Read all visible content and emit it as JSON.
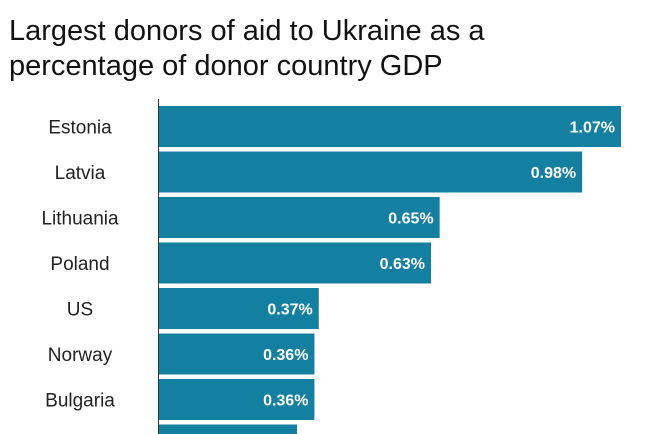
{
  "title": "Largest donors of aid to Ukraine as a percentage of donor country GDP",
  "colors": {
    "bar": "#1380A1",
    "axis": "#333333"
  },
  "chart_data": {
    "type": "bar",
    "orientation": "horizontal",
    "title": "Largest donors of aid to Ukraine as a percentage of donor country GDP",
    "categories": [
      "Estonia",
      "Latvia",
      "Lithuania",
      "Poland",
      "US",
      "Norway",
      "Bulgaria"
    ],
    "values": [
      1.07,
      0.98,
      0.65,
      0.63,
      0.37,
      0.36,
      0.36
    ],
    "value_labels": [
      "1.07%",
      "0.98%",
      "0.65%",
      "0.63%",
      "0.37%",
      "0.36%",
      "0.36%"
    ],
    "unit": "%",
    "xlim": [
      0,
      1.07
    ],
    "grid": false,
    "legend": "none"
  }
}
